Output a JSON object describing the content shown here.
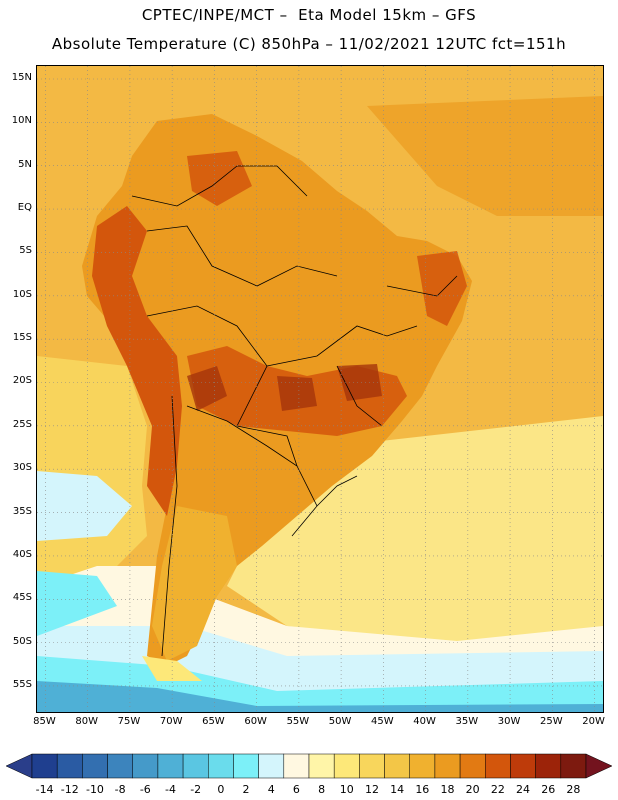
{
  "header": {
    "line1": "CPTEC/INPE/MCT –  Eta Model 15km – GFS",
    "line2": "Absolute Temperature (C) 850hPa – 11/02/2021 12UTC fct=151h"
  },
  "axes": {
    "lat_labels": [
      "15N",
      "10N",
      "5N",
      "EQ",
      "5S",
      "10S",
      "15S",
      "20S",
      "25S",
      "30S",
      "35S",
      "40S",
      "45S",
      "50S",
      "55S"
    ],
    "lat_values": [
      15,
      10,
      5,
      0,
      -5,
      -10,
      -15,
      -20,
      -25,
      -30,
      -35,
      -40,
      -45,
      -50,
      -55
    ],
    "lon_labels": [
      "85W",
      "80W",
      "75W",
      "70W",
      "65W",
      "60W",
      "55W",
      "50W",
      "45W",
      "40W",
      "35W",
      "30W",
      "25W",
      "20W"
    ],
    "lon_values": [
      -85,
      -80,
      -75,
      -70,
      -65,
      -60,
      -55,
      -50,
      -45,
      -40,
      -35,
      -30,
      -25,
      -20
    ]
  },
  "colorbar": {
    "labels": [
      "-14",
      "-12",
      "-10",
      "-8",
      "-6",
      "-4",
      "-2",
      "0",
      "2",
      "4",
      "6",
      "8",
      "10",
      "12",
      "14",
      "16",
      "18",
      "20",
      "22",
      "24",
      "26",
      "28"
    ],
    "values": [
      -14,
      -12,
      -10,
      -8,
      -6,
      -4,
      -2,
      0,
      2,
      4,
      6,
      8,
      10,
      12,
      14,
      16,
      18,
      20,
      22,
      24,
      26,
      28
    ],
    "colors": [
      "#1f3f8f",
      "#2a5ba3",
      "#336fb0",
      "#3c84bd",
      "#459ac9",
      "#4fb0d6",
      "#5ac6e2",
      "#6adcec",
      "#7cf0f8",
      "#d4f5fc",
      "#fff8e1",
      "#fff5a8",
      "#fde879",
      "#f8d65c",
      "#f3c647",
      "#f0b12f",
      "#eb9b20",
      "#e27a13",
      "#d3560c",
      "#be3b0a",
      "#9c2309",
      "#7d1a0f"
    ],
    "under_color": "#2a3e8a",
    "over_color": "#73131e"
  },
  "map_colors": {
    "ocean_warm": "#f3b944",
    "ocean_mid": "#f8d45c",
    "ocean_cool": "#fbe687",
    "pale": "#fff8e1",
    "cyan_light": "#d4f5fc",
    "cyan": "#7cf0f8",
    "blue": "#4fb0d6",
    "land_hot": "#d3560c",
    "land_very_hot": "#a5350b",
    "land_warm": "#eb9b20",
    "land_orange": "#e27a13",
    "border": "#000000"
  }
}
